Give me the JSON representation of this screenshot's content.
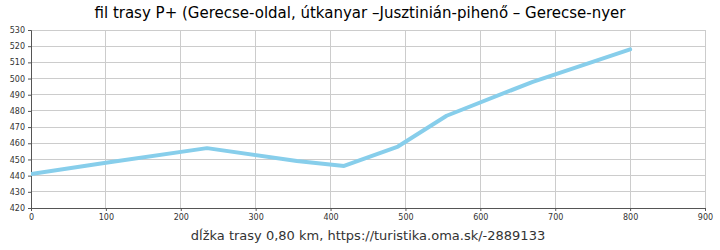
{
  "chart_data": {
    "type": "line",
    "title": "fil trasy P+ (Gerecse-oldal, útkanyar –Jusztinián-pihenő – Gerecse-nyer",
    "xlabel": "dĺžka trasy 0,80 km, https://turistika.oma.sk/-2889133",
    "x": [
      0,
      100,
      235,
      355,
      418,
      490,
      555,
      670,
      800
    ],
    "y": [
      441,
      448,
      457,
      449,
      446,
      458,
      477,
      498,
      518
    ],
    "color": "#87ceeb",
    "xlim": [
      0,
      900
    ],
    "ylim": [
      420,
      530
    ],
    "xticks": [
      0,
      100,
      200,
      300,
      400,
      500,
      600,
      700,
      800,
      900
    ],
    "yticks": [
      420,
      430,
      440,
      450,
      460,
      470,
      480,
      490,
      500,
      510,
      520,
      530
    ],
    "grid": true
  }
}
